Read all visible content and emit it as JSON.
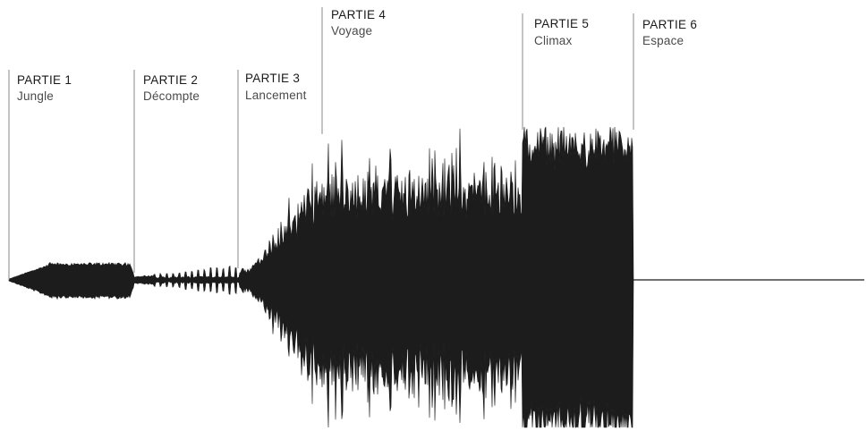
{
  "sections": [
    {
      "title": "PARTIE 1",
      "subtitle": "Jungle"
    },
    {
      "title": "PARTIE 2",
      "subtitle": "Décompte"
    },
    {
      "title": "PARTIE 3",
      "subtitle": "Lancement"
    },
    {
      "title": "PARTIE 4",
      "subtitle": "Voyage"
    },
    {
      "title": "PARTIE 5",
      "subtitle": "Climax"
    },
    {
      "title": "PARTIE 6",
      "subtitle": "Espace"
    }
  ],
  "colors": {
    "waveform": "#1c1c1c",
    "divider": "#8a8a8a",
    "title": "#1a1a1a",
    "subtitle": "#4a4a4a",
    "background": "#ffffff"
  }
}
